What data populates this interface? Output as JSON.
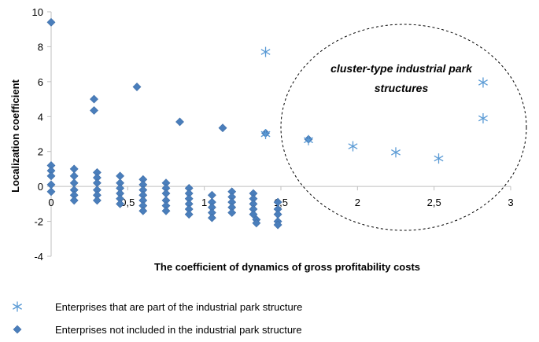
{
  "chart_data": {
    "type": "scatter",
    "xlabel": "The coefficient of dynamics of gross profitability costs",
    "ylabel": "Localization coefficient",
    "xlim": [
      0,
      3
    ],
    "ylim": [
      -4,
      10
    ],
    "x_ticks": [
      "0",
      "0,5",
      "1",
      "1,5",
      "2",
      "2,5",
      "3"
    ],
    "y_ticks": [
      "-4",
      "-2",
      "0",
      "2",
      "4",
      "6",
      "8",
      "10"
    ],
    "grid": false,
    "legend_position": "bottom",
    "annotation": {
      "line1": "cluster-type industrial park",
      "line2": "structures"
    },
    "series": [
      {
        "name": "Enterprises that are part of the industrial park structure",
        "marker": "asterisk",
        "color": "#5b9bd5",
        "points": [
          [
            1.4,
            7.7
          ],
          [
            1.4,
            3.0
          ],
          [
            1.68,
            2.65
          ],
          [
            1.97,
            2.3
          ],
          [
            2.25,
            1.95
          ],
          [
            2.53,
            1.6
          ],
          [
            2.82,
            5.95
          ],
          [
            2.82,
            3.9
          ]
        ]
      },
      {
        "name": "Enterprises not included in the industrial park structure",
        "marker": "diamond",
        "color": "#4a7ebb",
        "points": [
          [
            0,
            9.4
          ],
          [
            0,
            1.2
          ],
          [
            0,
            0.9
          ],
          [
            0,
            0.6
          ],
          [
            0,
            0.1
          ],
          [
            0,
            -0.3
          ],
          [
            0.15,
            1.0
          ],
          [
            0.15,
            0.6
          ],
          [
            0.15,
            0.2
          ],
          [
            0.15,
            -0.2
          ],
          [
            0.15,
            -0.5
          ],
          [
            0.15,
            -0.8
          ],
          [
            0.28,
            5.0
          ],
          [
            0.28,
            4.35
          ],
          [
            0.3,
            0.8
          ],
          [
            0.3,
            0.5
          ],
          [
            0.3,
            0.2
          ],
          [
            0.3,
            -0.2
          ],
          [
            0.3,
            -0.5
          ],
          [
            0.3,
            -0.8
          ],
          [
            0.45,
            0.6
          ],
          [
            0.45,
            0.2
          ],
          [
            0.45,
            -0.1
          ],
          [
            0.45,
            -0.4
          ],
          [
            0.45,
            -0.7
          ],
          [
            0.45,
            -1.0
          ],
          [
            0.56,
            5.7
          ],
          [
            0.6,
            0.4
          ],
          [
            0.6,
            0.1
          ],
          [
            0.6,
            -0.2
          ],
          [
            0.6,
            -0.5
          ],
          [
            0.6,
            -0.8
          ],
          [
            0.6,
            -1.1
          ],
          [
            0.6,
            -1.4
          ],
          [
            0.75,
            0.2
          ],
          [
            0.75,
            -0.1
          ],
          [
            0.75,
            -0.4
          ],
          [
            0.75,
            -0.8
          ],
          [
            0.75,
            -1.1
          ],
          [
            0.75,
            -1.4
          ],
          [
            0.84,
            3.7
          ],
          [
            0.9,
            -0.1
          ],
          [
            0.9,
            -0.4
          ],
          [
            0.9,
            -0.7
          ],
          [
            0.9,
            -1.0
          ],
          [
            0.9,
            -1.3
          ],
          [
            0.9,
            -1.6
          ],
          [
            1.05,
            -0.5
          ],
          [
            1.05,
            -0.9
          ],
          [
            1.05,
            -1.2
          ],
          [
            1.05,
            -1.5
          ],
          [
            1.05,
            -1.8
          ],
          [
            1.12,
            3.35
          ],
          [
            1.18,
            -0.3
          ],
          [
            1.18,
            -0.6
          ],
          [
            1.18,
            -0.9
          ],
          [
            1.18,
            -1.2
          ],
          [
            1.18,
            -1.5
          ],
          [
            1.32,
            -0.4
          ],
          [
            1.32,
            -0.7
          ],
          [
            1.32,
            -1.0
          ],
          [
            1.32,
            -1.3
          ],
          [
            1.32,
            -1.6
          ],
          [
            1.34,
            -1.9
          ],
          [
            1.34,
            -2.1
          ],
          [
            1.4,
            3.05
          ],
          [
            1.48,
            -0.9
          ],
          [
            1.48,
            -1.3
          ],
          [
            1.48,
            -1.6
          ],
          [
            1.48,
            -2.0
          ],
          [
            1.48,
            -2.2
          ],
          [
            1.68,
            2.7
          ]
        ]
      }
    ]
  }
}
